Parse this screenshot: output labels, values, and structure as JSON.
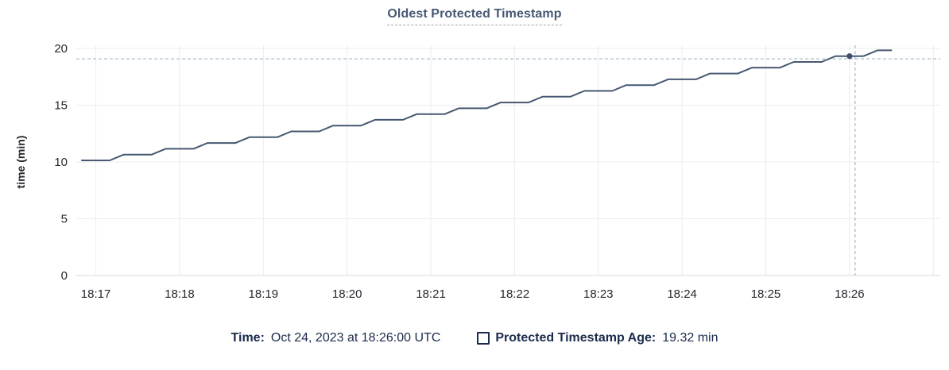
{
  "chart": {
    "title": "Oldest Protected Timestamp",
    "ylabel": "time (min)"
  },
  "tooltip": {
    "time_label": "Time:",
    "time_value": "Oct 24, 2023 at 18:26:00 UTC",
    "series_label": "Protected Timestamp Age:",
    "series_value": "19.32 min"
  },
  "colors": {
    "line": "#475872",
    "dot": "#3e4d68",
    "title": "#475872",
    "legend_text": "#1b2b4c",
    "axis_text": "#25282e",
    "grid": "#ececec",
    "axis_line": "#dbdbdb",
    "crosshair": "#a7bfcc"
  },
  "chart_data": {
    "type": "line",
    "title": "Oldest Protected Timestamp",
    "xlabel": "",
    "ylabel": "time (min)",
    "ylim": [
      0,
      20
    ],
    "y_ticks": [
      0,
      5,
      10,
      15,
      20
    ],
    "x_domain": [
      "18:16:46",
      "18:27:05"
    ],
    "x_ticks": [
      {
        "t": "18:17",
        "label": "18:17"
      },
      {
        "t": "18:18",
        "label": "18:18"
      },
      {
        "t": "18:19",
        "label": "18:19"
      },
      {
        "t": "18:20",
        "label": "18:20"
      },
      {
        "t": "18:21",
        "label": "18:21"
      },
      {
        "t": "18:22",
        "label": "18:22"
      },
      {
        "t": "18:23",
        "label": "18:23"
      },
      {
        "t": "18:24",
        "label": "18:24"
      },
      {
        "t": "18:25",
        "label": "18:25"
      },
      {
        "t": "18:26",
        "label": "18:26"
      },
      {
        "t": "18:27",
        "label": ""
      }
    ],
    "grid": true,
    "legend_position": "bottom",
    "crosshair": {
      "x": "18:26:04",
      "y_value": 19.08
    },
    "highlight_point": {
      "x": "18:26:00",
      "y": 19.32
    },
    "series": [
      {
        "name": "Protected Timestamp Age",
        "unit": "min",
        "points": [
          [
            "18:16:50",
            10.14
          ],
          [
            "18:17:00",
            10.14
          ],
          [
            "18:17:10",
            10.14
          ],
          [
            "18:17:20",
            10.65
          ],
          [
            "18:17:30",
            10.65
          ],
          [
            "18:17:40",
            10.65
          ],
          [
            "18:17:50",
            11.16
          ],
          [
            "18:18:00",
            11.16
          ],
          [
            "18:18:10",
            11.16
          ],
          [
            "18:18:20",
            11.67
          ],
          [
            "18:18:30",
            11.67
          ],
          [
            "18:18:40",
            11.67
          ],
          [
            "18:18:50",
            12.18
          ],
          [
            "18:19:00",
            12.18
          ],
          [
            "18:19:10",
            12.18
          ],
          [
            "18:19:20",
            12.69
          ],
          [
            "18:19:30",
            12.69
          ],
          [
            "18:19:40",
            12.69
          ],
          [
            "18:19:50",
            13.2
          ],
          [
            "18:20:00",
            13.2
          ],
          [
            "18:20:10",
            13.2
          ],
          [
            "18:20:20",
            13.71
          ],
          [
            "18:20:30",
            13.71
          ],
          [
            "18:20:40",
            13.71
          ],
          [
            "18:20:50",
            14.22
          ],
          [
            "18:21:00",
            14.22
          ],
          [
            "18:21:10",
            14.22
          ],
          [
            "18:21:20",
            14.73
          ],
          [
            "18:21:30",
            14.73
          ],
          [
            "18:21:40",
            14.73
          ],
          [
            "18:21:50",
            15.24
          ],
          [
            "18:22:00",
            15.24
          ],
          [
            "18:22:10",
            15.24
          ],
          [
            "18:22:20",
            15.75
          ],
          [
            "18:22:30",
            15.75
          ],
          [
            "18:22:40",
            15.75
          ],
          [
            "18:22:50",
            16.26
          ],
          [
            "18:23:00",
            16.26
          ],
          [
            "18:23:10",
            16.26
          ],
          [
            "18:23:20",
            16.77
          ],
          [
            "18:23:30",
            16.77
          ],
          [
            "18:23:40",
            16.77
          ],
          [
            "18:23:50",
            17.28
          ],
          [
            "18:24:00",
            17.28
          ],
          [
            "18:24:10",
            17.28
          ],
          [
            "18:24:20",
            17.79
          ],
          [
            "18:24:30",
            17.79
          ],
          [
            "18:24:40",
            17.79
          ],
          [
            "18:24:50",
            18.3
          ],
          [
            "18:25:00",
            18.3
          ],
          [
            "18:25:10",
            18.3
          ],
          [
            "18:25:20",
            18.81
          ],
          [
            "18:25:30",
            18.81
          ],
          [
            "18:25:40",
            18.81
          ],
          [
            "18:25:50",
            19.32
          ],
          [
            "18:26:00",
            19.32
          ],
          [
            "18:26:10",
            19.32
          ],
          [
            "18:26:20",
            19.83
          ],
          [
            "18:26:30",
            19.83
          ]
        ]
      }
    ]
  }
}
